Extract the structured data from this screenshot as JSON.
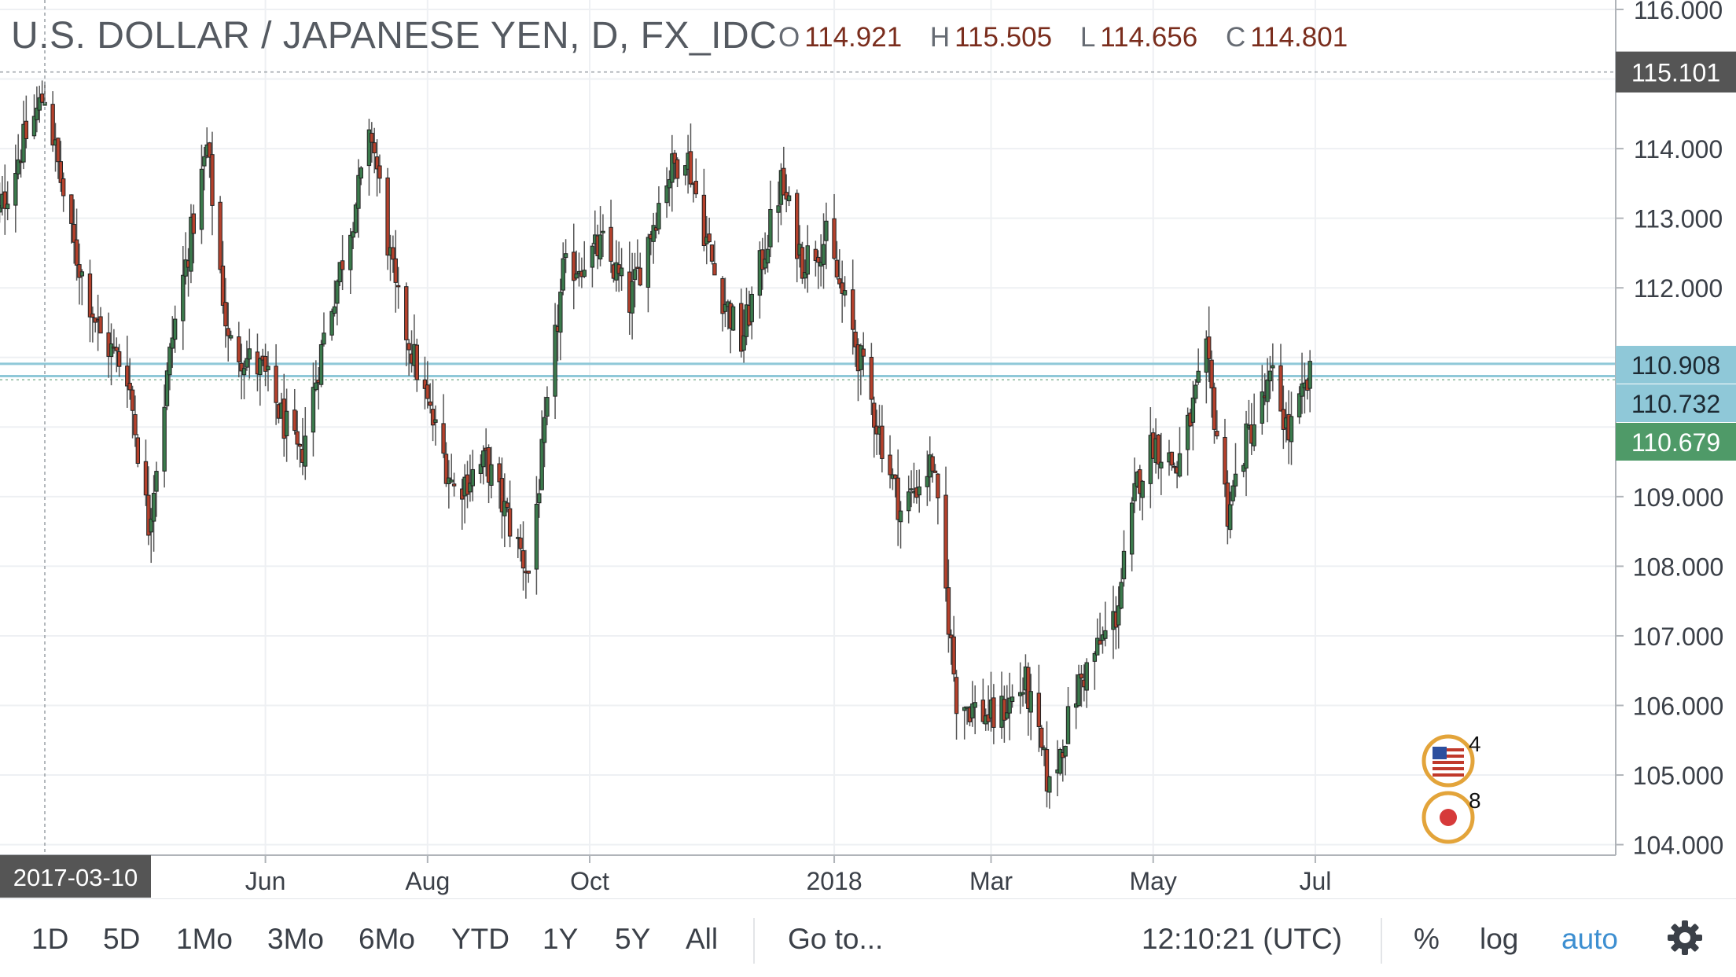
{
  "header": {
    "title": "U.S. DOLLAR / JAPANESE YEN, D, FX_IDC",
    "ohlc": [
      {
        "key": "O",
        "value": "114.921"
      },
      {
        "key": "H",
        "value": "115.505"
      },
      {
        "key": "L",
        "value": "114.656"
      },
      {
        "key": "C",
        "value": "114.801"
      }
    ]
  },
  "colors": {
    "up": "#3b7a4c",
    "down": "#b5412c",
    "grid": "#eef0f3",
    "hline": "#8fc8d8",
    "price_tag_blue": "#8fc8d8",
    "price_tag_green": "#4f9a68",
    "price_tag_dark": "#555555"
  },
  "chart_data": {
    "type": "candlestick",
    "symbol": "USDJPY",
    "exchange": "FX_IDC",
    "interval": "D",
    "ylim": [
      103.9,
      116.15
    ],
    "y_ticks": [
      "104.000",
      "105.000",
      "106.000",
      "107.000",
      "108.000",
      "109.000",
      "112.000",
      "113.000",
      "114.000",
      "116.000"
    ],
    "x_ticks": [
      "Jun",
      "Aug",
      "Oct",
      "2018",
      "Mar",
      "May",
      "Jul"
    ],
    "x_tick_dates": [
      "2017-06-01",
      "2017-08-01",
      "2017-10-01",
      "2018-01-01",
      "2018-03-01",
      "2018-05-01",
      "2018-07-01"
    ],
    "x_range": [
      "2017-02-17",
      "2018-09-01"
    ],
    "crosshair": {
      "date": "2017-03-10",
      "date_label": "2017-03-10",
      "price": 115.101,
      "price_label": "115.101"
    },
    "horizontal_lines": [
      110.908,
      110.732
    ],
    "price_tags": [
      {
        "value": 110.908,
        "label": "110.908",
        "style": "blue"
      },
      {
        "value": 110.732,
        "label": "110.732",
        "style": "blue"
      },
      {
        "value": 110.679,
        "label": "110.679",
        "style": "green"
      }
    ],
    "close_path": [
      [
        "2017-02-17",
        112.6
      ],
      [
        "2017-03-01",
        114.0
      ],
      [
        "2017-03-10",
        114.8
      ],
      [
        "2017-03-20",
        112.7
      ],
      [
        "2017-03-31",
        111.3
      ],
      [
        "2017-04-10",
        110.8
      ],
      [
        "2017-04-18",
        108.6
      ],
      [
        "2017-04-27",
        111.3
      ],
      [
        "2017-05-10",
        114.0
      ],
      [
        "2017-05-18",
        111.2
      ],
      [
        "2017-05-31",
        110.8
      ],
      [
        "2017-06-14",
        109.5
      ],
      [
        "2017-06-23",
        111.3
      ],
      [
        "2017-07-11",
        114.2
      ],
      [
        "2017-07-20",
        111.9
      ],
      [
        "2017-08-01",
        110.3
      ],
      [
        "2017-08-11",
        109.1
      ],
      [
        "2017-08-23",
        109.5
      ],
      [
        "2017-09-08",
        107.9
      ],
      [
        "2017-09-21",
        112.2
      ],
      [
        "2017-10-06",
        112.6
      ],
      [
        "2017-10-16",
        111.8
      ],
      [
        "2017-10-30",
        113.6
      ],
      [
        "2017-11-06",
        114.0
      ],
      [
        "2017-11-17",
        112.2
      ],
      [
        "2017-11-27",
        111.2
      ],
      [
        "2017-12-12",
        113.5
      ],
      [
        "2017-12-20",
        112.4
      ],
      [
        "2017-12-29",
        112.7
      ],
      [
        "2018-01-09",
        111.2
      ],
      [
        "2018-01-26",
        108.8
      ],
      [
        "2018-02-07",
        109.5
      ],
      [
        "2018-02-16",
        106.1
      ],
      [
        "2018-03-02",
        105.8
      ],
      [
        "2018-03-14",
        106.3
      ],
      [
        "2018-03-23",
        104.8
      ],
      [
        "2018-04-03",
        106.3
      ],
      [
        "2018-04-17",
        107.3
      ],
      [
        "2018-04-25",
        109.2
      ],
      [
        "2018-05-01",
        109.8
      ],
      [
        "2018-05-10",
        109.4
      ],
      [
        "2018-05-21",
        111.0
      ],
      [
        "2018-05-29",
        108.8
      ],
      [
        "2018-06-05",
        109.8
      ],
      [
        "2018-06-15",
        110.7
      ],
      [
        "2018-06-21",
        109.9
      ],
      [
        "2018-06-29",
        110.7
      ]
    ],
    "has_event_icons": true
  },
  "event_icons": [
    {
      "flag": "us-flag-icon",
      "count": "4"
    },
    {
      "flag": "japan-flag-icon",
      "count": "8"
    }
  ],
  "toolbar": {
    "ranges": [
      "1D",
      "5D",
      "1Mo",
      "3Mo",
      "6Mo",
      "YTD",
      "1Y",
      "5Y",
      "All"
    ],
    "goto": "Go to...",
    "time": "12:10:21 (UTC)",
    "percent": "%",
    "log": "log",
    "auto": "auto"
  }
}
